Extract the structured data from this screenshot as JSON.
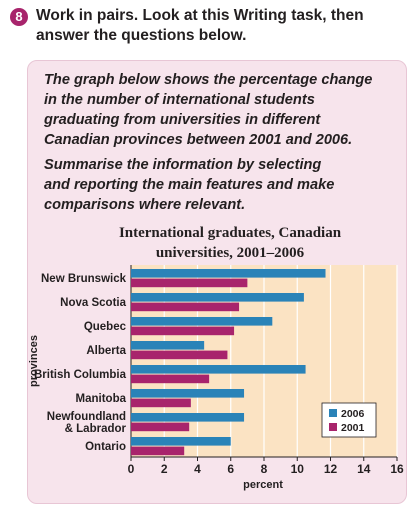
{
  "exercise": {
    "number": "8",
    "instruction_line1": "Work in pairs. Look at this Writing task, then",
    "instruction_line2": "answer the questions below."
  },
  "task": {
    "para1": [
      "The graph below shows the percentage change",
      "in the number of international students",
      "graduating from universities in different",
      "Canadian provinces between 2001 and 2006."
    ],
    "para2": [
      "Summarise the information by selecting",
      "and reporting the main features and make",
      "comparisons where relevant."
    ]
  },
  "chart_data": {
    "type": "bar",
    "orientation": "horizontal",
    "title_line1": "International graduates, Canadian",
    "title_line2": "universities, 2001–2006",
    "xlabel": "percent",
    "ylabel": "provinces",
    "xlim": [
      0,
      16
    ],
    "xticks": [
      0,
      2,
      4,
      6,
      8,
      10,
      12,
      14,
      16
    ],
    "grid": true,
    "legend_position": "bottom-right",
    "categories": [
      [
        "New Brunswick"
      ],
      [
        "Nova Scotia"
      ],
      [
        "Quebec"
      ],
      [
        "Alberta"
      ],
      [
        "British Columbia"
      ],
      [
        "Manitoba"
      ],
      [
        "Newfoundland",
        "& Labrador"
      ],
      [
        "Ontario"
      ]
    ],
    "series": [
      {
        "name": "2006",
        "color": "#2a83b8",
        "values": [
          11.7,
          10.4,
          8.5,
          4.4,
          10.5,
          6.8,
          6.8,
          6.0
        ]
      },
      {
        "name": "2001",
        "color": "#a8246c",
        "values": [
          7.0,
          6.5,
          6.2,
          5.8,
          4.7,
          3.6,
          3.5,
          3.2
        ]
      }
    ],
    "plot_background": "#fbe3c3"
  }
}
